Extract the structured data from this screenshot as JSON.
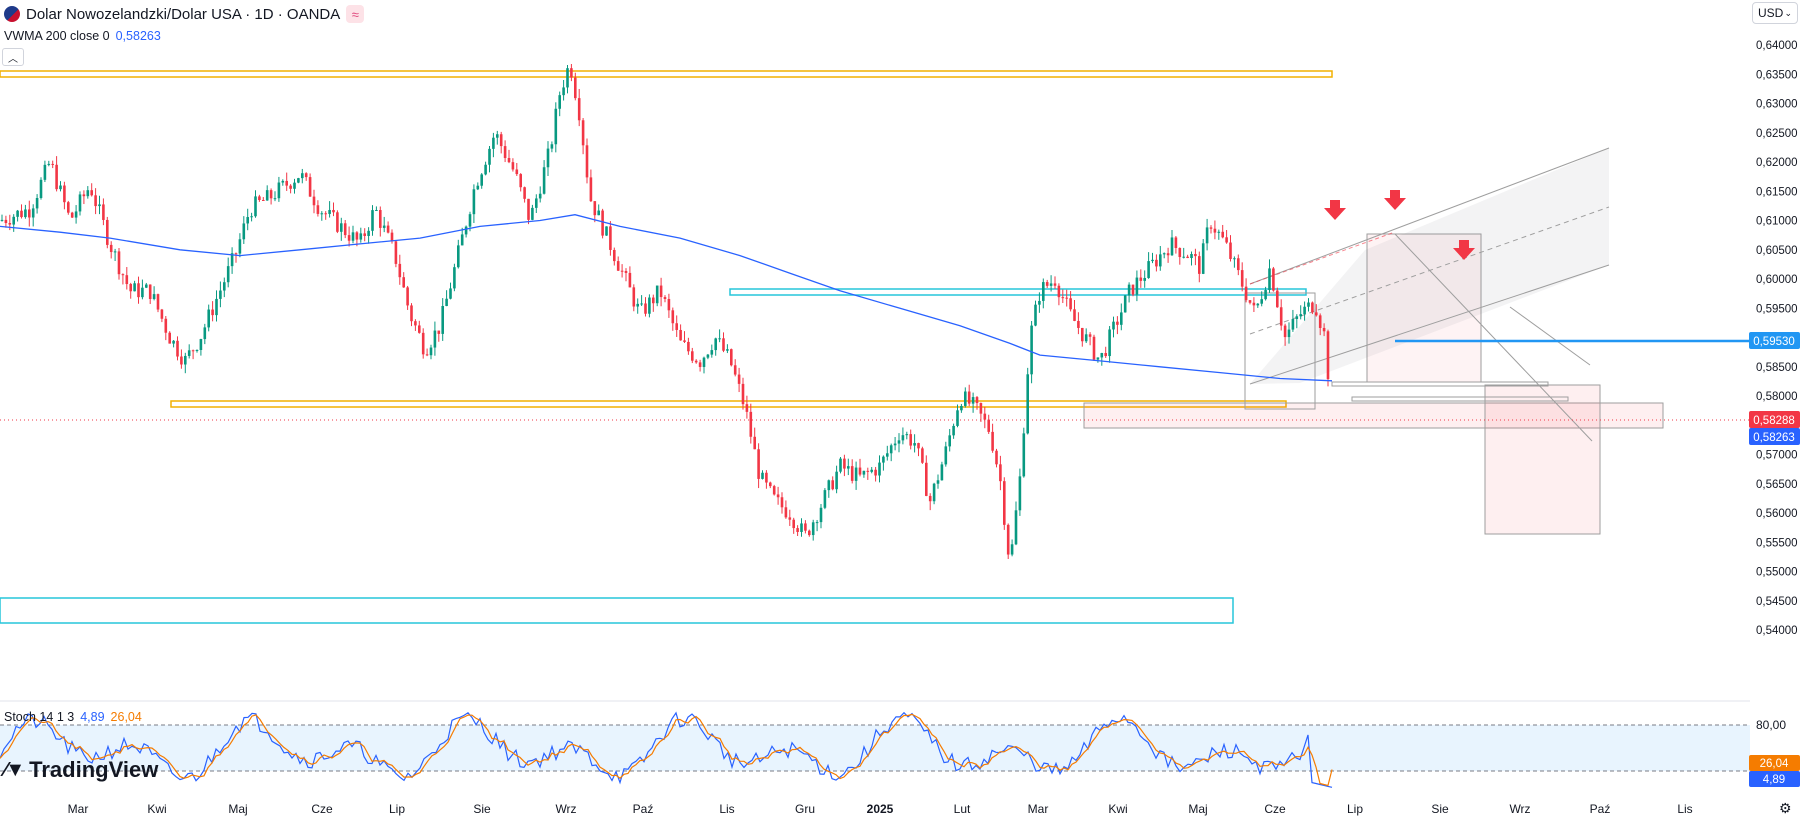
{
  "header": {
    "title": "Dolar Nowozelandzki/Dolar USA · 1D · OANDA",
    "indicator_name": "VWMA 200 close 0",
    "indicator_value": "0,58263",
    "currency": "USD"
  },
  "chart_data": {
    "type": "candlestick",
    "y_ticks": [
      "0,64000",
      "0,63500",
      "0,63000",
      "0,62500",
      "0,62000",
      "0,61500",
      "0,61000",
      "0,60500",
      "0,60000",
      "0,59500",
      "0,59000",
      "0,58500",
      "0,58000",
      "0,57500",
      "0,57000",
      "0,56500",
      "0,56000",
      "0,55500",
      "0,55000",
      "0,54500",
      "0,54000"
    ],
    "y_range": [
      0.5385,
      0.6425
    ],
    "x_ticks": [
      "Mar",
      "Kwi",
      "Maj",
      "Cze",
      "Lip",
      "Sie",
      "Wrz",
      "Paź",
      "Lis",
      "Gru",
      "2025",
      "Lut",
      "Mar",
      "Kwi",
      "Maj",
      "Cze",
      "Lip",
      "Sie",
      "Wrz",
      "Paź",
      "Lis"
    ],
    "price_labels": {
      "level": "0,59530",
      "last": "0,58288",
      "vwma": "0,58263"
    },
    "price_path": [
      [
        0,
        0.61
      ],
      [
        30,
        0.612
      ],
      [
        50,
        0.62
      ],
      [
        70,
        0.61
      ],
      [
        90,
        0.616
      ],
      [
        110,
        0.606
      ],
      [
        130,
        0.598
      ],
      [
        150,
        0.598
      ],
      [
        170,
        0.59
      ],
      [
        185,
        0.586
      ],
      [
        200,
        0.59
      ],
      [
        215,
        0.596
      ],
      [
        235,
        0.604
      ],
      [
        250,
        0.612
      ],
      [
        270,
        0.614
      ],
      [
        300,
        0.618
      ],
      [
        320,
        0.612
      ],
      [
        340,
        0.609
      ],
      [
        360,
        0.606
      ],
      [
        375,
        0.612
      ],
      [
        395,
        0.604
      ],
      [
        410,
        0.594
      ],
      [
        425,
        0.588
      ],
      [
        440,
        0.592
      ],
      [
        455,
        0.602
      ],
      [
        475,
        0.616
      ],
      [
        495,
        0.625
      ],
      [
        515,
        0.618
      ],
      [
        530,
        0.61
      ],
      [
        550,
        0.622
      ],
      [
        560,
        0.632
      ],
      [
        570,
        0.637
      ],
      [
        580,
        0.628
      ],
      [
        590,
        0.614
      ],
      [
        605,
        0.608
      ],
      [
        620,
        0.602
      ],
      [
        640,
        0.594
      ],
      [
        660,
        0.598
      ],
      [
        680,
        0.589
      ],
      [
        700,
        0.586
      ],
      [
        715,
        0.59
      ],
      [
        730,
        0.586
      ],
      [
        745,
        0.578
      ],
      [
        760,
        0.566
      ],
      [
        775,
        0.562
      ],
      [
        790,
        0.56
      ],
      [
        805,
        0.556
      ],
      [
        820,
        0.561
      ],
      [
        840,
        0.568
      ],
      [
        860,
        0.566
      ],
      [
        880,
        0.568
      ],
      [
        900,
        0.574
      ],
      [
        915,
        0.572
      ],
      [
        930,
        0.562
      ],
      [
        945,
        0.57
      ],
      [
        960,
        0.58
      ],
      [
        975,
        0.578
      ],
      [
        990,
        0.574
      ],
      [
        1000,
        0.566
      ],
      [
        1010,
        0.551
      ],
      [
        1020,
        0.566
      ],
      [
        1030,
        0.59
      ],
      [
        1040,
        0.598
      ],
      [
        1055,
        0.6
      ],
      [
        1070,
        0.594
      ],
      [
        1085,
        0.59
      ],
      [
        1100,
        0.586
      ],
      [
        1115,
        0.592
      ],
      [
        1130,
        0.598
      ],
      [
        1150,
        0.602
      ],
      [
        1170,
        0.606
      ],
      [
        1190,
        0.604
      ],
      [
        1200,
        0.602
      ],
      [
        1210,
        0.61
      ],
      [
        1225,
        0.606
      ],
      [
        1240,
        0.6
      ],
      [
        1255,
        0.594
      ],
      [
        1270,
        0.602
      ],
      [
        1285,
        0.59
      ],
      [
        1300,
        0.594
      ],
      [
        1315,
        0.596
      ],
      [
        1325,
        0.59
      ],
      [
        1332,
        0.583
      ]
    ],
    "vwma_path": [
      [
        0,
        0.609
      ],
      [
        60,
        0.608
      ],
      [
        110,
        0.607
      ],
      [
        180,
        0.605
      ],
      [
        240,
        0.604
      ],
      [
        300,
        0.605
      ],
      [
        360,
        0.606
      ],
      [
        420,
        0.607
      ],
      [
        480,
        0.609
      ],
      [
        540,
        0.61
      ],
      [
        575,
        0.611
      ],
      [
        620,
        0.609
      ],
      [
        680,
        0.607
      ],
      [
        740,
        0.604
      ],
      [
        790,
        0.601
      ],
      [
        840,
        0.598
      ],
      [
        900,
        0.595
      ],
      [
        960,
        0.592
      ],
      [
        1010,
        0.589
      ],
      [
        1040,
        0.587
      ],
      [
        1100,
        0.586
      ],
      [
        1160,
        0.585
      ],
      [
        1220,
        0.584
      ],
      [
        1280,
        0.583
      ],
      [
        1332,
        0.5826
      ]
    ],
    "stoch": {
      "label": "Stoch 14 1 3",
      "k_value": "4,89",
      "d_value": "26,04",
      "level_high": "80,00",
      "level_low": "20,00"
    }
  },
  "footer": {
    "logo_text": "TradingView"
  },
  "colors": {
    "up": "#089981",
    "down": "#f23645",
    "vwma": "#2962ff",
    "support": "#f2b100",
    "zone": "#26c6da"
  }
}
